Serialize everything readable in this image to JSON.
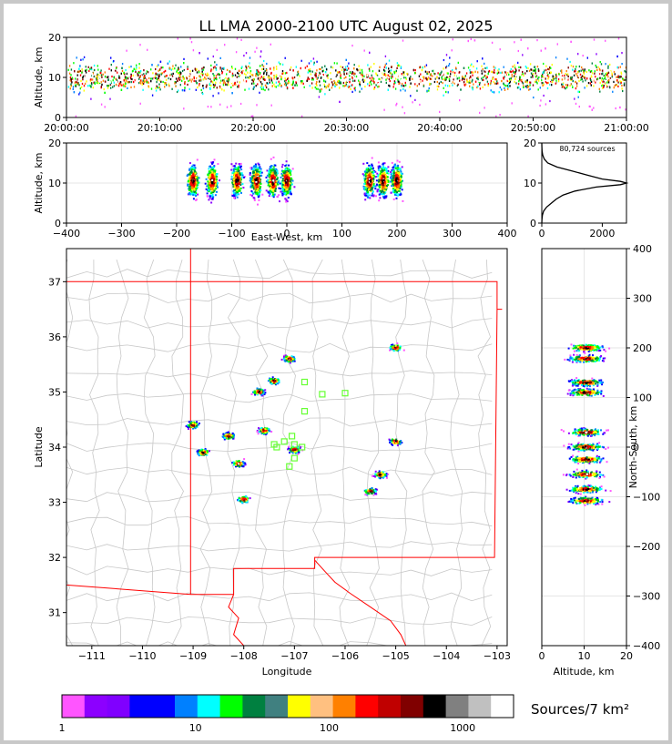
{
  "title": "LL LMA 2000-2100 UTC August 02, 2025",
  "colors": {
    "map_border": "#ff0000",
    "county_lines": "#c8c8c8",
    "station_marker": "#66ff33",
    "axes": "#000000"
  },
  "chart_data": [
    {
      "id": "time-altitude",
      "type": "scatter",
      "ylabel": "Altitude, km",
      "ylim": [
        0,
        20
      ],
      "yticks": [
        "0",
        "10",
        "20"
      ],
      "xlim": [
        "20:00:00",
        "21:00:00"
      ],
      "xticks": [
        "20:00:00",
        "20:10:00",
        "20:20:00",
        "20:30:00",
        "20:40:00",
        "20:50:00",
        "21:00:00"
      ],
      "altitude_band_km": [
        5,
        16
      ],
      "densest_altitude_km": 10
    },
    {
      "id": "ew-altitude",
      "type": "heatmap",
      "xlabel": "East-West, km",
      "ylabel": "Altitude, km",
      "xlim": [
        -400,
        400
      ],
      "ylim": [
        0,
        20
      ],
      "xticks": [
        "−400",
        "−300",
        "−200",
        "−100",
        "0",
        "100",
        "200",
        "300",
        "400"
      ],
      "yticks": [
        "0",
        "10",
        "20"
      ],
      "clusters_x_km": [
        -170,
        -135,
        -90,
        -55,
        -25,
        0,
        150,
        175,
        200
      ]
    },
    {
      "id": "altitude-histogram",
      "type": "line",
      "annotation": "80,724 sources",
      "xlim": [
        0,
        2800
      ],
      "ylim": [
        0,
        20
      ],
      "xticks": [
        "0",
        "2000"
      ],
      "yticks": [
        "0",
        "10",
        "20"
      ],
      "points": [
        [
          0,
          0
        ],
        [
          5,
          1
        ],
        [
          20,
          2
        ],
        [
          60,
          3
        ],
        [
          160,
          4
        ],
        [
          320,
          5
        ],
        [
          480,
          6
        ],
        [
          700,
          7
        ],
        [
          1100,
          8
        ],
        [
          1800,
          9
        ],
        [
          2600,
          9.6
        ],
        [
          2800,
          10
        ],
        [
          2600,
          10.4
        ],
        [
          2000,
          11
        ],
        [
          1500,
          12
        ],
        [
          1000,
          13
        ],
        [
          500,
          14
        ],
        [
          200,
          15
        ],
        [
          80,
          16
        ],
        [
          30,
          17
        ],
        [
          10,
          18
        ],
        [
          2,
          19
        ],
        [
          0,
          20
        ]
      ]
    },
    {
      "id": "plan-view",
      "type": "heatmap",
      "xlabel": "Longitude",
      "ylabel": "Latitude",
      "xlim": [
        -111.5,
        -102.8
      ],
      "ylim": [
        30.4,
        37.6
      ],
      "xticks": [
        "−111",
        "−110",
        "−109",
        "−108",
        "−107",
        "−106",
        "−105",
        "−104",
        "−103"
      ],
      "yticks": [
        "31",
        "32",
        "33",
        "34",
        "35",
        "36",
        "37"
      ],
      "clusters": [
        {
          "lon": -107.1,
          "lat": 35.6
        },
        {
          "lon": -107.4,
          "lat": 35.2
        },
        {
          "lon": -107.7,
          "lat": 35.0
        },
        {
          "lon": -105.0,
          "lat": 35.8
        },
        {
          "lon": -108.8,
          "lat": 33.9
        },
        {
          "lon": -108.3,
          "lat": 34.2
        },
        {
          "lon": -108.1,
          "lat": 33.7
        },
        {
          "lon": -107.6,
          "lat": 34.3
        },
        {
          "lon": -107.0,
          "lat": 33.95
        },
        {
          "lon": -108.0,
          "lat": 33.05
        },
        {
          "lon": -105.5,
          "lat": 33.2
        },
        {
          "lon": -105.0,
          "lat": 34.1
        },
        {
          "lon": -105.3,
          "lat": 33.5
        },
        {
          "lon": -109.0,
          "lat": 34.4
        }
      ],
      "stations": [
        {
          "lon": -106.8,
          "lat": 35.18
        },
        {
          "lon": -106.45,
          "lat": 34.96
        },
        {
          "lon": -106.0,
          "lat": 34.98
        },
        {
          "lon": -106.8,
          "lat": 34.65
        },
        {
          "lon": -107.05,
          "lat": 34.2
        },
        {
          "lon": -107.0,
          "lat": 34.05
        },
        {
          "lon": -106.85,
          "lat": 34.0
        },
        {
          "lon": -107.2,
          "lat": 34.1
        },
        {
          "lon": -107.35,
          "lat": 34.0
        },
        {
          "lon": -107.4,
          "lat": 34.05
        },
        {
          "lon": -107.0,
          "lat": 33.8
        },
        {
          "lon": -107.1,
          "lat": 33.65
        }
      ]
    },
    {
      "id": "altitude-ns",
      "type": "heatmap",
      "xlabel": "Altitude, km",
      "ylabel": "North-South, km",
      "xlim": [
        0,
        20
      ],
      "ylim": [
        -400,
        400
      ],
      "xticks": [
        "0",
        "10",
        "20"
      ],
      "yticks": [
        "−400",
        "−300",
        "−200",
        "−100",
        "0",
        "100",
        "200",
        "300",
        "400"
      ],
      "bands_y_km": [
        200,
        178,
        130,
        110,
        30,
        0,
        -25,
        -55,
        -85,
        -108
      ]
    },
    {
      "id": "colorbar",
      "type": "bar",
      "label": "Sources/7 km²",
      "ticks": [
        "1",
        "10",
        "100",
        "1000"
      ],
      "colors": [
        "#ff55ff",
        "#8c00ff",
        "#8000ff",
        "#0000ff",
        "#0000ff",
        "#0080ff",
        "#00ffff",
        "#00ff00",
        "#008040",
        "#408080",
        "#ffff00",
        "#ffc080",
        "#ff8000",
        "#ff0000",
        "#c00000",
        "#800000",
        "#000000",
        "#808080",
        "#c0c0c0",
        "#ffffff"
      ]
    }
  ]
}
